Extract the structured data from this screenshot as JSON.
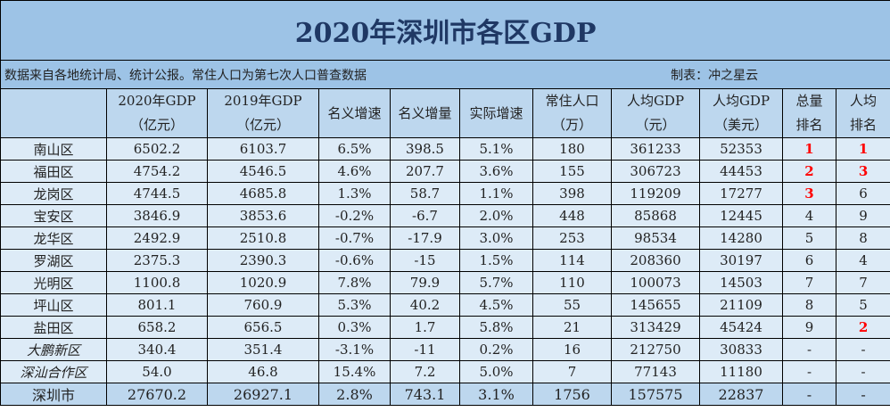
{
  "title": "2020年深圳市各区GDP",
  "note": "数据来自各地统计局、统计公报。常住人口为第七次人口普查数据",
  "maker": "制表：冲之星云",
  "headers": [
    {
      "l1": "",
      "l2": ""
    },
    {
      "l1": "2020年GDP",
      "l2": "（亿元）"
    },
    {
      "l1": "2019年GDP",
      "l2": "（亿元）"
    },
    {
      "l1": "名义增速",
      "l2": ""
    },
    {
      "l1": "名义增量",
      "l2": ""
    },
    {
      "l1": "实际增速",
      "l2": ""
    },
    {
      "l1": "常住人口",
      "l2": "（万）"
    },
    {
      "l1": "人均GDP",
      "l2": "（元）"
    },
    {
      "l1": "人均GDP",
      "l2": "（美元）"
    },
    {
      "l1": "总量",
      "l2": "排名"
    },
    {
      "l1": "人均",
      "l2": "排名"
    }
  ],
  "highlight_color": "#ff0000",
  "rows": [
    {
      "cells": [
        "南山区",
        "6502.2",
        "6103.7",
        "6.5%",
        "398.5",
        "5.1%",
        "180",
        "361233",
        "52353",
        "1",
        "1"
      ],
      "italic": false
    },
    {
      "cells": [
        "福田区",
        "4754.2",
        "4546.5",
        "4.6%",
        "207.7",
        "3.6%",
        "155",
        "306723",
        "44453",
        "2",
        "3"
      ],
      "italic": false
    },
    {
      "cells": [
        "龙岗区",
        "4744.5",
        "4685.8",
        "1.3%",
        "58.7",
        "1.1%",
        "398",
        "119209",
        "17277",
        "3",
        "6"
      ],
      "italic": false
    },
    {
      "cells": [
        "宝安区",
        "3846.9",
        "3853.6",
        "-0.2%",
        "-6.7",
        "2.0%",
        "448",
        "85868",
        "12445",
        "4",
        "9"
      ],
      "italic": false
    },
    {
      "cells": [
        "龙华区",
        "2492.9",
        "2510.8",
        "-0.7%",
        "-17.9",
        "3.0%",
        "253",
        "98534",
        "14280",
        "5",
        "8"
      ],
      "italic": false
    },
    {
      "cells": [
        "罗湖区",
        "2375.3",
        "2390.3",
        "-0.6%",
        "-15",
        "1.5%",
        "114",
        "208360",
        "30197",
        "6",
        "4"
      ],
      "italic": false
    },
    {
      "cells": [
        "光明区",
        "1100.8",
        "1020.9",
        "7.8%",
        "79.9",
        "5.7%",
        "110",
        "100073",
        "14503",
        "7",
        "7"
      ],
      "italic": false
    },
    {
      "cells": [
        "坪山区",
        "801.1",
        "760.9",
        "5.3%",
        "40.2",
        "4.5%",
        "55",
        "145655",
        "21109",
        "8",
        "5"
      ],
      "italic": false
    },
    {
      "cells": [
        "盐田区",
        "658.2",
        "656.5",
        "0.3%",
        "1.7",
        "5.8%",
        "21",
        "313429",
        "45424",
        "9",
        "2"
      ],
      "italic": false
    },
    {
      "cells": [
        "大鹏新区",
        "340.4",
        "351.4",
        "-3.1%",
        "-11",
        "0.2%",
        "16",
        "212750",
        "30833",
        "-",
        "-"
      ],
      "italic": true
    },
    {
      "cells": [
        "深汕合作区",
        "54.0",
        "46.8",
        "15.4%",
        "7.2",
        "5.0%",
        "7",
        "77143",
        "11180",
        "-",
        "-"
      ],
      "italic": true
    }
  ],
  "total": {
    "cells": [
      "深圳市",
      "27670.2",
      "26927.1",
      "2.8%",
      "743.1",
      "3.1%",
      "1756",
      "157575",
      "22837",
      "-",
      "-"
    ]
  }
}
